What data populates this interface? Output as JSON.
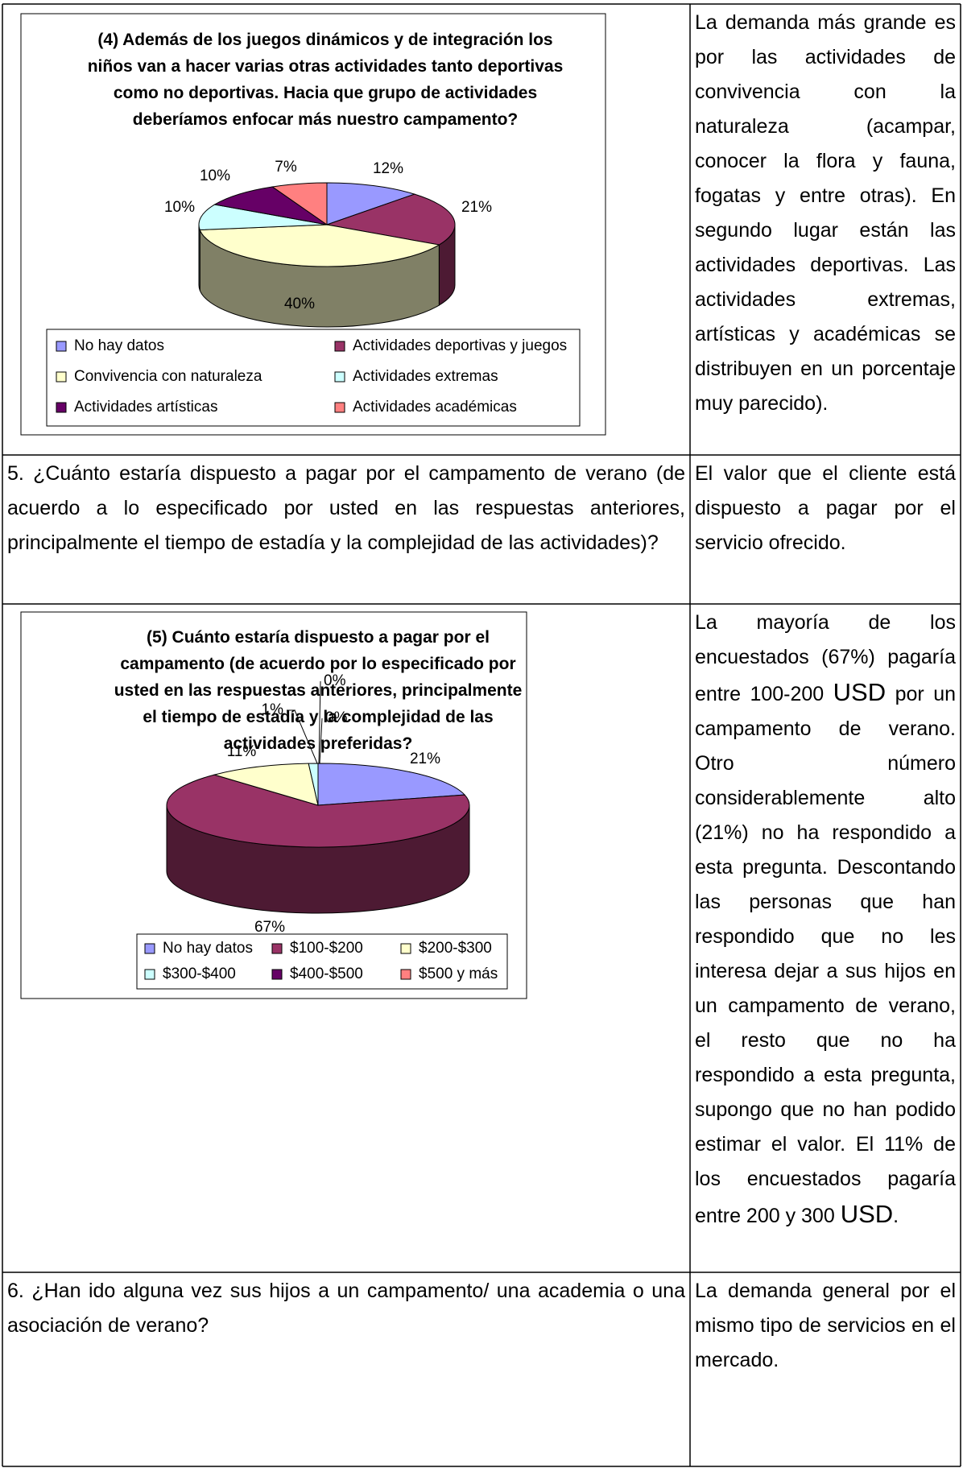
{
  "rows": [
    {
      "answer": "La demanda más grande es por las actividades de convivencia con la naturaleza (acampar, conocer la flora y fauna, fogatas y entre otras). En segundo lugar están las actividades deportivas. Las actividades extremas, artísticas y académicas se distribuyen en un porcentaje muy parecido)."
    },
    {
      "question": "5. ¿Cuánto estaría dispuesto a pagar por el campamento de verano (de acuerdo a lo especificado por usted en las respuestas anteriores, principalmente el tiempo de estadía y la complejidad de las actividades)?",
      "answer": "El valor que el cliente está dispuesto a pagar por el servicio ofrecido."
    },
    {
      "answer": [
        "La mayoría de los encuestados (67%) pagaría entre 100-200 ",
        "USD",
        " por un campamento de verano. Otro número considerablemente alto (21%) no ha respondido a esta pregunta. Descontando las personas que han respondido que no les interesa dejar a sus hijos en un campamento de verano, el resto que no ha respondido a esta pregunta, supongo que no han podido estimar el valor. El 11% de los encuestados pagaría entre 200 y 300 ",
        "USD",
        "."
      ]
    },
    {
      "question": "6. ¿Han ido alguna vez sus hijos a un campamento/ una academia o una asociación de verano?",
      "answer": "La demanda general por el mismo tipo de servicios en el mercado."
    }
  ],
  "chart_data": [
    {
      "type": "pie",
      "title": "(4) Además de los juegos dinámicos y de integración los niños van a hacer varias otras actividades tanto deportivas como no deportivas. Hacia que grupo de actividades deberíamos enfocar más nuestro campamento?",
      "categories": [
        "No hay datos",
        "Actividades deportivas y juegos",
        "Convivencia con naturaleza",
        "Actividades extremas",
        "Actividades artísticas",
        "Actividades académicas"
      ],
      "values": [
        12,
        21,
        40,
        10,
        10,
        7
      ],
      "value_labels": [
        "12%",
        "21%",
        "40%",
        "10%",
        "10%",
        "7%"
      ],
      "colors": [
        "#9999ff",
        "#993366",
        "#ffffcc",
        "#ccffff",
        "#660066",
        "#ff8080"
      ]
    },
    {
      "type": "pie",
      "title": "(5) Cuánto estaría dispuesto a pagar por el campamento (de acuerdo por lo especificado por usted en las respuestas anteriores, principalmente el tiempo de estadía y la complejidad de las actividades preferidas?",
      "categories": [
        "No hay datos",
        "$100-$200",
        "$200-$300",
        "$300-$400",
        "$400-$500",
        "$500 y más"
      ],
      "values": [
        21,
        67,
        11,
        1,
        0,
        0
      ],
      "value_labels": [
        "21%",
        "67%",
        "11%",
        "1%",
        "0%",
        "0%"
      ],
      "colors": [
        "#9999ff",
        "#993366",
        "#ffffcc",
        "#ccffff",
        "#660066",
        "#ff8080"
      ]
    }
  ]
}
